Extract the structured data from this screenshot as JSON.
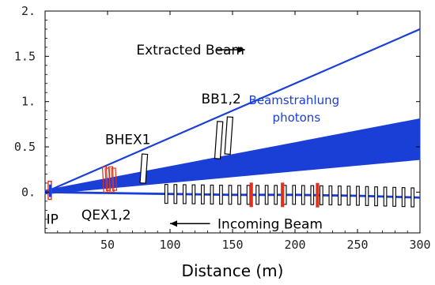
{
  "chart_data": {
    "type": "line",
    "xlabel": "Distance (m)",
    "ylabel": "",
    "xlim": [
      0,
      300
    ],
    "ylim": [
      -0.45,
      2.0
    ],
    "x_ticks": [
      50,
      100,
      150,
      200,
      250,
      300
    ],
    "x_tick_labels": [
      "50",
      "100",
      "150",
      "200",
      "250",
      "300"
    ],
    "y_ticks": [
      0.0,
      0.5,
      1.0,
      1.5,
      2.0
    ],
    "y_tick_labels": [
      "0.",
      "0.5",
      "1.",
      "1.5",
      "2."
    ],
    "colors": {
      "beam": "#1a3fd6",
      "magnet_red": "#e0311a",
      "magnet_black": "#000000",
      "axis": "#000000"
    },
    "series": [
      {
        "name": "Extracted Beam",
        "x": [
          0,
          300
        ],
        "y": [
          0.0,
          1.8
        ]
      },
      {
        "name": "Beamstrahlung photons",
        "x": [
          0,
          300
        ],
        "y_upper": [
          0.02,
          0.81
        ],
        "y_lower": [
          -0.02,
          0.36
        ]
      },
      {
        "name": "Incoming Beam",
        "x": [
          0,
          50,
          100,
          150,
          200,
          250,
          300
        ],
        "y": [
          0.0,
          -0.01,
          -0.02,
          -0.03,
          -0.03,
          -0.04,
          -0.06
        ]
      }
    ],
    "elements": [
      {
        "label": "BHEX1",
        "x": 79,
        "y_low": 0.1,
        "y_high": 0.42,
        "angle_deg": 4
      },
      {
        "label": "BB1,2",
        "x": 139,
        "y_low": 0.37,
        "y_high": 0.78,
        "angle_deg": 4
      },
      {
        "label": "BB1,2",
        "x": 147,
        "y_low": 0.42,
        "y_high": 0.83,
        "angle_deg": 4
      }
    ],
    "annotations": [
      {
        "id": "extracted",
        "text": "Extracted Beam",
        "x": 73,
        "y": 1.52,
        "arrow_from": 137,
        "arrow_to": 160
      },
      {
        "id": "beamstrahlung_1",
        "text": "Beamstrahlung",
        "x": 163,
        "y": 0.97
      },
      {
        "id": "beamstrahlung_2",
        "text": "photons",
        "x": 182,
        "y": 0.78
      },
      {
        "id": "bhex1",
        "text": "BHEX1",
        "x": 48,
        "y": 0.53
      },
      {
        "id": "bb12",
        "text": "BB1,2",
        "x": 125,
        "y": 0.98
      },
      {
        "id": "qex12",
        "text": "QEX1,2",
        "x": 29,
        "y": -0.3
      },
      {
        "id": "ip",
        "text": "IP",
        "x": 1,
        "y": -0.35
      },
      {
        "id": "incoming",
        "text": "Incoming Beam",
        "x": 138,
        "y": -0.4,
        "arrow_from": 132,
        "arrow_to": 100
      }
    ]
  }
}
